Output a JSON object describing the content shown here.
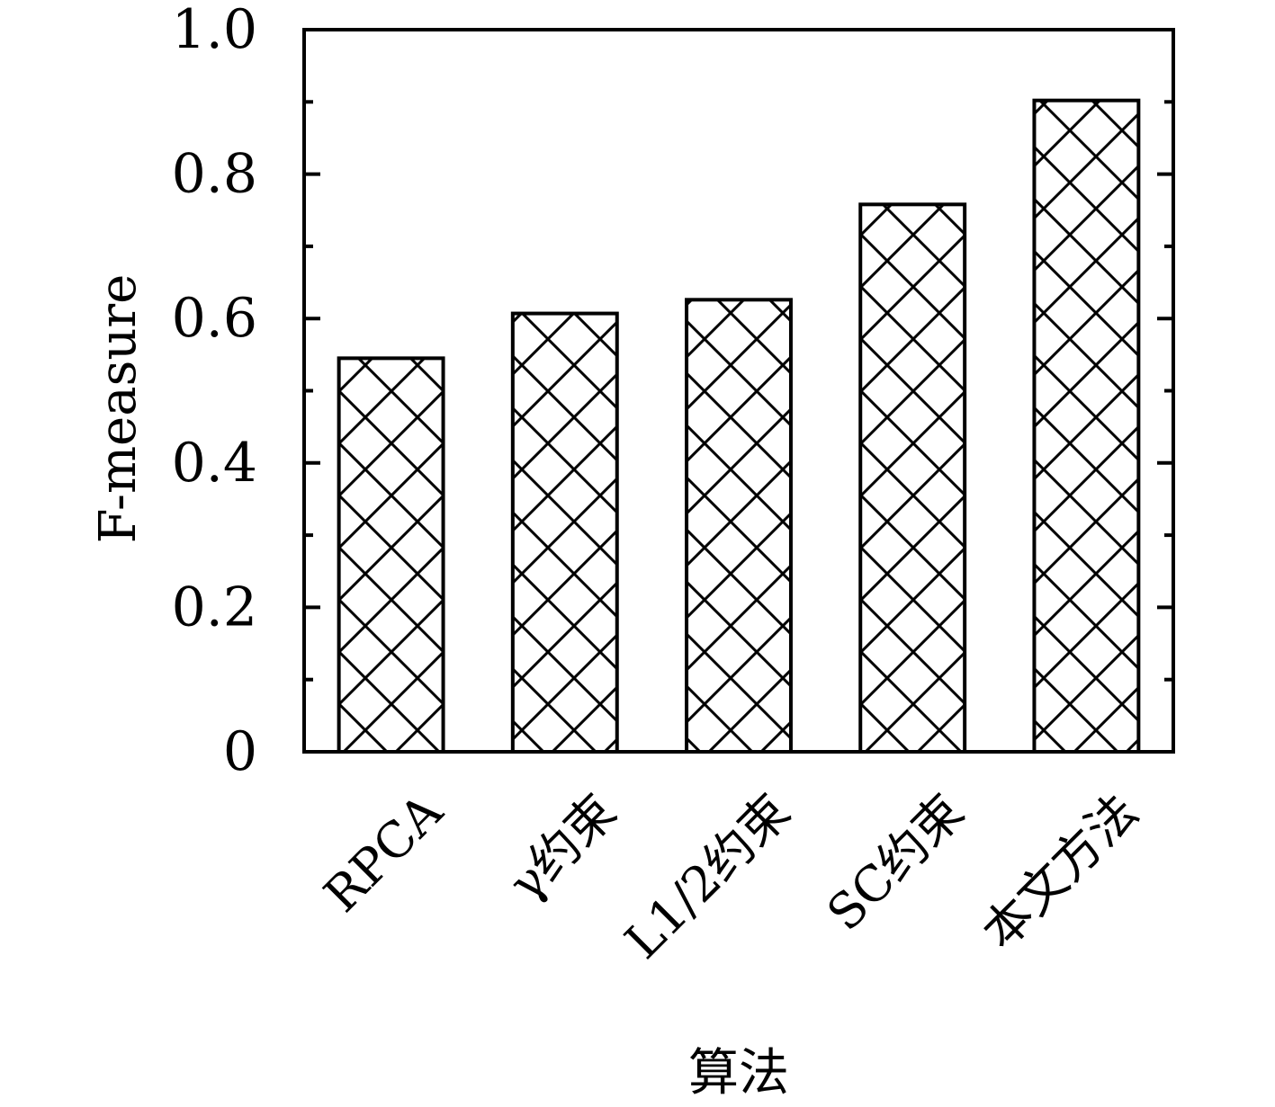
{
  "chart_data": {
    "type": "bar",
    "xlabel": "算法",
    "ylabel": "F-measure",
    "categories": [
      "RPCA",
      "γ约束",
      "L1/2约束",
      "SC约束",
      "本文方法"
    ],
    "values": [
      0.545,
      0.607,
      0.626,
      0.758,
      0.902
    ],
    "ylim": [
      0,
      1.0
    ],
    "yticks": [
      0,
      0.2,
      0.4,
      0.6,
      0.8,
      1.0
    ],
    "ytick_labels": [
      "0",
      "0.2",
      "0.4",
      "0.6",
      "0.8",
      "1.0"
    ],
    "grid": false,
    "legend": "none",
    "bar_fill": "crosshatch",
    "colors": {
      "stroke": "#000000",
      "background": "#ffffff"
    }
  }
}
